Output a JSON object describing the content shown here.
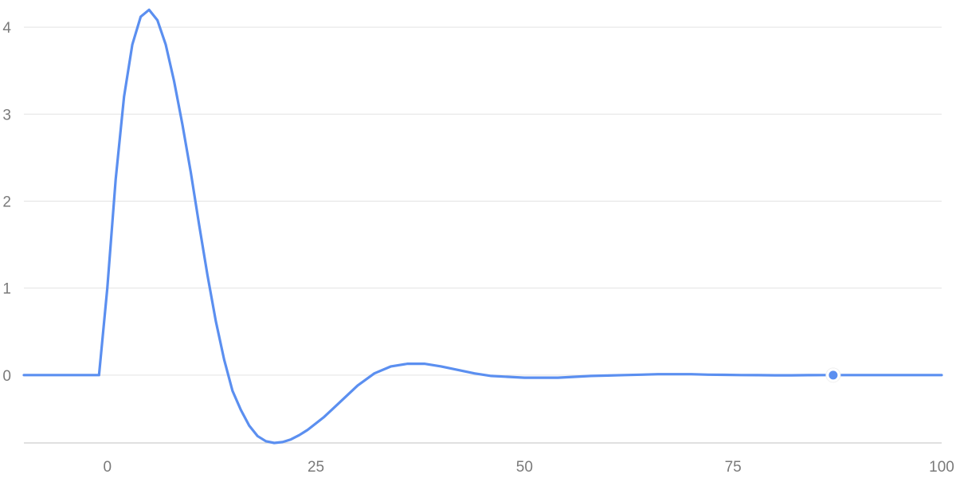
{
  "chart_data": {
    "type": "line",
    "title": "",
    "xlabel": "",
    "ylabel": "",
    "xlim": [
      -10,
      100
    ],
    "ylim": [
      -0.78,
      4.12
    ],
    "x_ticks": [
      0,
      25,
      50,
      75,
      100
    ],
    "y_ticks": [
      0,
      1,
      2,
      3,
      4
    ],
    "grid": "horizontal",
    "legend": "none",
    "colors": {
      "series": "#5b8ff0",
      "grid": "#e3e3e3",
      "axis": "#d6d6d6",
      "tick_text": "#7a7a7a"
    },
    "series": [
      {
        "x": [
          -10,
          -1,
          0,
          1,
          2,
          3,
          4,
          5,
          6,
          7,
          8,
          9,
          10,
          11,
          12,
          13,
          14,
          15,
          16,
          17,
          18,
          19,
          20,
          21,
          22,
          23,
          24,
          26,
          28,
          30,
          32,
          34,
          36,
          38,
          40,
          42,
          44,
          46,
          48,
          50,
          52,
          54,
          56,
          58,
          60,
          62,
          64,
          66,
          68,
          70,
          72,
          74,
          76,
          78,
          80,
          82,
          84,
          86,
          88,
          90,
          92,
          94,
          96,
          98,
          100
        ],
        "values": [
          0,
          0,
          1.0,
          2.25,
          3.2,
          3.8,
          4.12,
          4.2,
          4.08,
          3.8,
          3.38,
          2.88,
          2.33,
          1.73,
          1.15,
          0.62,
          0.18,
          -0.18,
          -0.4,
          -0.58,
          -0.7,
          -0.76,
          -0.78,
          -0.77,
          -0.74,
          -0.69,
          -0.63,
          -0.48,
          -0.3,
          -0.12,
          0.02,
          0.1,
          0.13,
          0.13,
          0.1,
          0.06,
          0.02,
          -0.01,
          -0.02,
          -0.03,
          -0.03,
          -0.03,
          -0.02,
          -0.01,
          -0.005,
          0.0,
          0.005,
          0.01,
          0.01,
          0.01,
          0.005,
          0.003,
          0.0,
          -0.001,
          -0.002,
          -0.002,
          -0.001,
          0.0,
          0.0,
          0.0,
          0.0,
          0.0,
          0.0,
          0.0,
          0.0
        ]
      }
    ],
    "highlight_point": {
      "x": 87,
      "y": 0
    }
  }
}
